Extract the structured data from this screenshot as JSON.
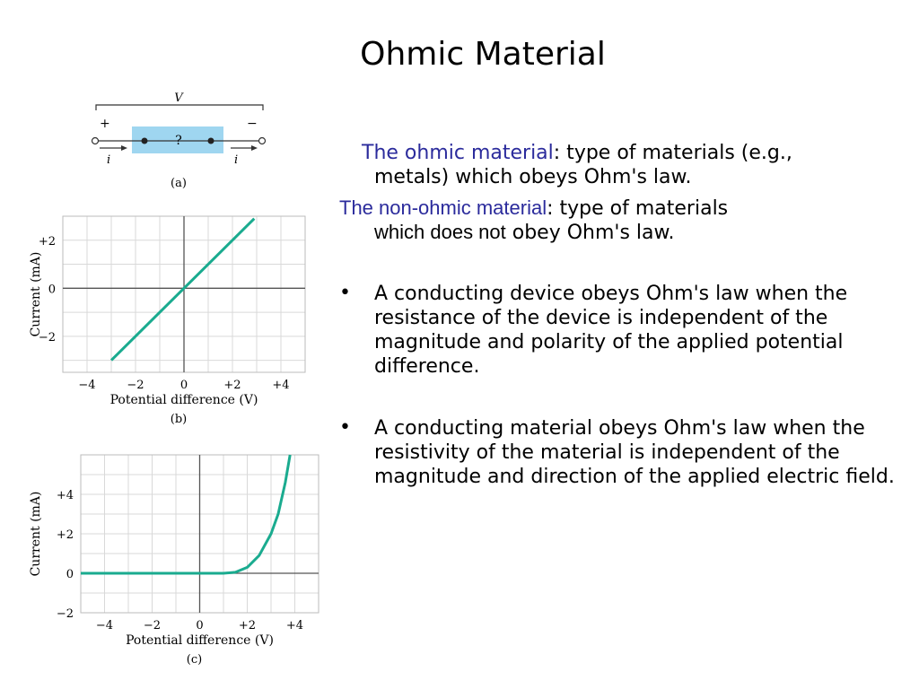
{
  "title": "Ohmic Material",
  "definitions": {
    "ohmic_term": "The ohmic material",
    "ohmic_text": ": type of materials (e.g.,",
    "ohmic_text_2": "metals) which obeys Ohm's law.",
    "nonohmic_term": "The non-ohmic material",
    "nonohmic_text": ": type of materials",
    "nonohmic_text_2a": "which does not",
    "nonohmic_text_2b": " obey Ohm's law."
  },
  "bullets": [
    {
      "symbol": "•",
      "text": "A conducting device obeys Ohm's law when the resistance of the device is independent of the magnitude and polarity of the applied potential difference."
    },
    {
      "symbol": "•",
      "text": "A conducting material obeys Ohm's law when the resistivity of the material is independent of the magnitude and direction of the applied electric field."
    }
  ],
  "figure_a": {
    "voltage_label": "V",
    "plus": "+",
    "minus": "−",
    "box_label": "?",
    "current_left": "i",
    "current_right": "i",
    "caption": "(a)"
  },
  "colors": {
    "accent": "#2b2b9c",
    "curve": "#1aab8f",
    "box": "#9fd6f0"
  },
  "chart_data": [
    {
      "type": "line",
      "caption": "(b)",
      "xlabel": "Potential difference (V)",
      "ylabel": "Current (mA)",
      "xlim": [
        -5,
        5
      ],
      "ylim": [
        -3.5,
        3
      ],
      "x_ticks": [
        "−4",
        "−2",
        "0",
        "+2",
        "+4"
      ],
      "y_ticks": [
        "+2",
        "0",
        "−2"
      ],
      "series": [
        {
          "x": [
            -3.0,
            2.9
          ],
          "y": [
            -3.0,
            2.9
          ]
        }
      ],
      "grid": true
    },
    {
      "type": "line",
      "caption": "(c)",
      "xlabel": "Potential difference (V)",
      "ylabel": "Current (mA)",
      "xlim": [
        -5,
        5
      ],
      "ylim": [
        -2,
        6
      ],
      "x_ticks": [
        "−4",
        "−2",
        "0",
        "+2",
        "+4"
      ],
      "y_ticks": [
        "+4",
        "+2",
        "0",
        "−2"
      ],
      "series": [
        {
          "x": [
            -5,
            1.0,
            1.5,
            2.0,
            2.5,
            3.0,
            3.3,
            3.6,
            3.8
          ],
          "y": [
            0,
            0,
            0.05,
            0.3,
            0.9,
            2.0,
            3.0,
            4.6,
            6.0
          ]
        }
      ],
      "grid": true
    }
  ]
}
